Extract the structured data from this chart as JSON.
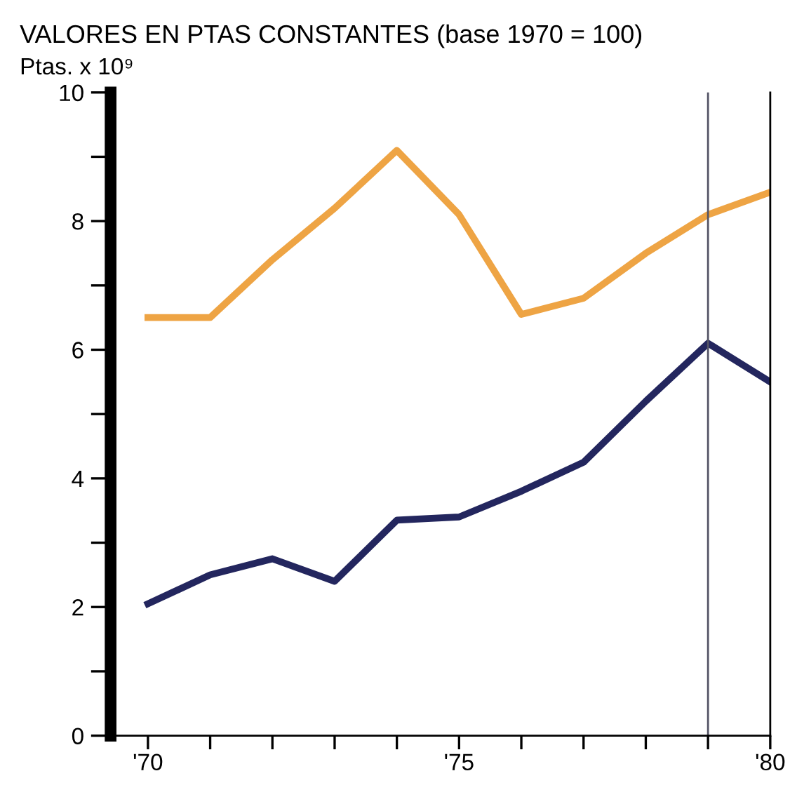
{
  "chart_data": {
    "type": "line",
    "title": "VALORES EN PTAS CONSTANTES (base 1970 = 100)",
    "ylabel": "Ptas. x 10⁹",
    "x": [
      1970,
      1971,
      1972,
      1973,
      1974,
      1975,
      1976,
      1977,
      1978,
      1979,
      1980
    ],
    "series": [
      {
        "color": "#eea444",
        "values": [
          6.5,
          6.5,
          7.4,
          8.2,
          9.1,
          8.1,
          6.55,
          6.8,
          7.5,
          8.1,
          8.45
        ]
      },
      {
        "color": "#23265e",
        "values": [
          2.05,
          2.5,
          2.75,
          2.4,
          3.35,
          3.4,
          3.8,
          4.25,
          5.2,
          6.1,
          5.5
        ]
      }
    ],
    "xlim": [
      1969.4,
      1980
    ],
    "xticks": [
      {
        "value": 1970,
        "label": "'70"
      },
      {
        "value": 1971,
        "label": null
      },
      {
        "value": 1972,
        "label": null
      },
      {
        "value": 1973,
        "label": null
      },
      {
        "value": 1974,
        "label": null
      },
      {
        "value": 1975,
        "label": "'75"
      },
      {
        "value": 1976,
        "label": null
      },
      {
        "value": 1977,
        "label": null
      },
      {
        "value": 1978,
        "label": null
      },
      {
        "value": 1979,
        "label": null
      },
      {
        "value": 1980,
        "label": "'80"
      }
    ],
    "ylim": [
      0,
      10
    ],
    "yticks": [
      0,
      {
        "value": 1,
        "label": null
      },
      2,
      {
        "value": 3,
        "label": null
      },
      4,
      {
        "value": 5,
        "label": null
      },
      6,
      {
        "value": 7,
        "label": null
      },
      8,
      {
        "value": 9,
        "label": null
      },
      10
    ],
    "ref_lines": [
      {
        "axis": "x",
        "value": 1979,
        "color": "#555566"
      }
    ],
    "grid": false,
    "legend": false,
    "marker": "none",
    "line_style": "solid"
  }
}
